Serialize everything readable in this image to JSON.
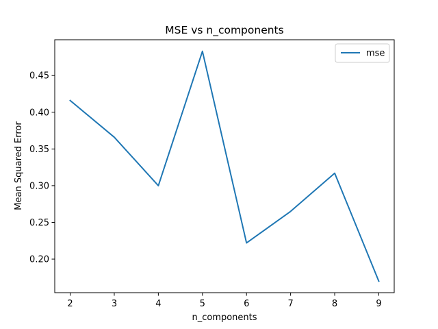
{
  "chart_data": {
    "type": "line",
    "title": "MSE vs n_components",
    "xlabel": "n_components",
    "ylabel": "Mean Squared Error",
    "x": [
      2,
      3,
      4,
      5,
      6,
      7,
      8,
      9
    ],
    "series": [
      {
        "name": "mse",
        "color": "#1f77b4",
        "values": [
          0.416,
          0.366,
          0.3,
          0.483,
          0.222,
          0.265,
          0.317,
          0.17
        ]
      }
    ],
    "xlim": [
      1.65,
      9.35
    ],
    "ylim": [
      0.1543,
      0.4987
    ],
    "xticks": [
      2,
      3,
      4,
      5,
      6,
      7,
      8,
      9
    ],
    "xtick_labels": [
      "2",
      "3",
      "4",
      "5",
      "6",
      "7",
      "8",
      "9"
    ],
    "yticks": [
      0.2,
      0.25,
      0.3,
      0.35,
      0.4,
      0.45
    ],
    "ytick_labels": [
      "0.20",
      "0.25",
      "0.30",
      "0.35",
      "0.40",
      "0.45"
    ],
    "grid": false,
    "legend": "upper right"
  }
}
